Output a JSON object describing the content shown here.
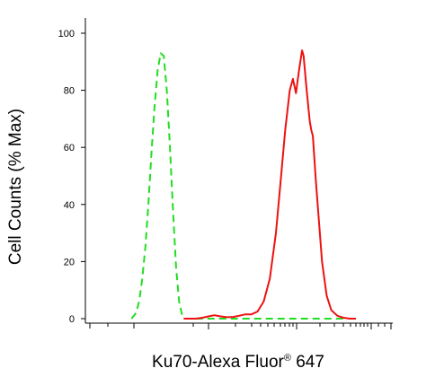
{
  "chart_data": {
    "type": "line",
    "title": "",
    "xlabel_main": "Ku70-Alexa Fluor",
    "xlabel_sup": "®",
    "xlabel_tail": " 647",
    "ylabel": "Cell Counts (% Max)",
    "ylim": [
      0,
      100
    ],
    "yticks": [
      0,
      20,
      40,
      60,
      80,
      100
    ],
    "ytick_labels": [
      "0",
      "20",
      "40",
      "60",
      "80",
      "100"
    ],
    "xlim": [
      0,
      100
    ],
    "x_tick_labels": [],
    "grid": false,
    "legend": "none",
    "series": [
      {
        "color": "#22dd22",
        "dash": "dashed",
        "x": [
          15.0,
          16.5,
          17.5,
          18.5,
          19.5,
          20.5,
          21.5,
          22.5,
          23.5,
          24.5,
          25.5,
          26.5,
          27.5,
          28.5,
          29.5,
          30.5,
          31.5,
          32.0,
          85.0
        ],
        "y": [
          0,
          2,
          6,
          14,
          25,
          40,
          58,
          74,
          87,
          93,
          92,
          80,
          60,
          38,
          18,
          6,
          1,
          0,
          0
        ]
      },
      {
        "color": "#ee1111",
        "dash": "solid",
        "x": [
          32.0,
          36.0,
          38.0,
          40.0,
          42.0,
          44.0,
          46.0,
          48.0,
          50.0,
          52.0,
          54.0,
          56.0,
          58.0,
          60.0,
          62.0,
          63.5,
          65.0,
          66.5,
          67.5,
          68.5,
          69.5,
          70.5,
          71.0,
          72.0,
          73.0,
          73.5,
          74.0,
          75.0,
          76.0,
          77.0,
          78.5,
          80.0,
          82.0,
          84.0,
          86.0,
          88.0
        ],
        "y": [
          0,
          0,
          0.3,
          0.8,
          1.2,
          0.8,
          0.5,
          0.6,
          1,
          1.5,
          1.5,
          2.5,
          6,
          14,
          30,
          48,
          66,
          80,
          84,
          79,
          87,
          94,
          92,
          80,
          69,
          66,
          64,
          48,
          34,
          20,
          8,
          3,
          1,
          0.3,
          0,
          0
        ]
      }
    ]
  }
}
